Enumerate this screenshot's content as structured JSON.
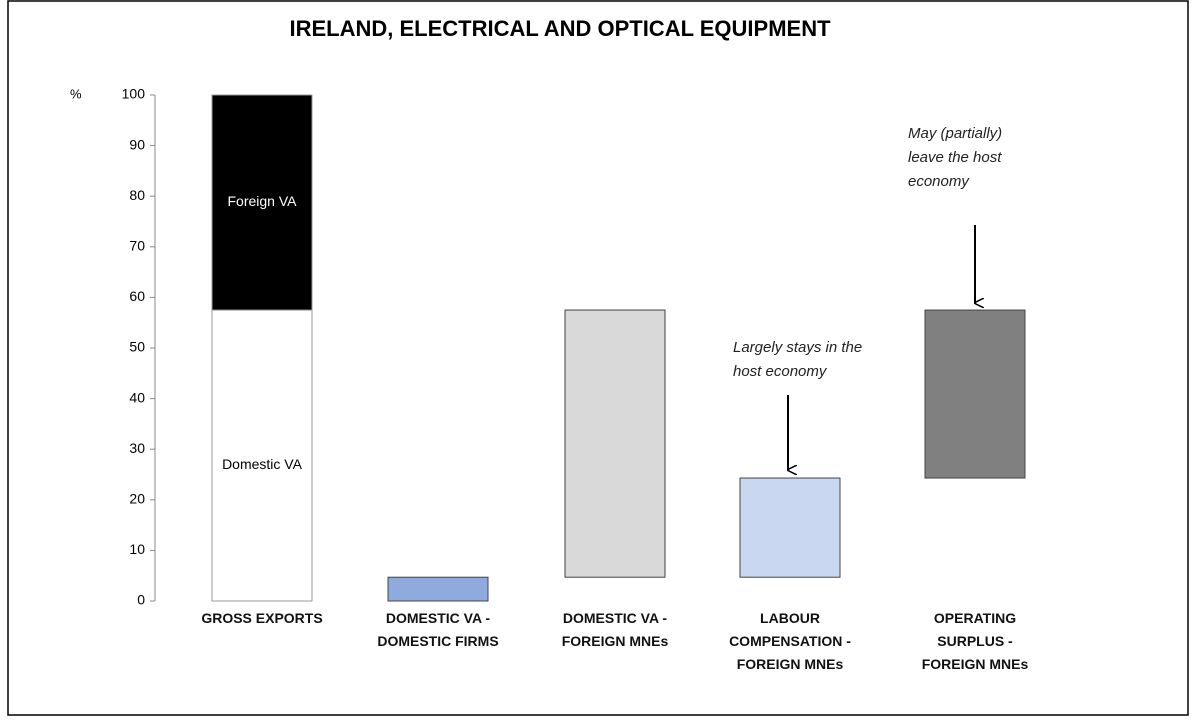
{
  "chart_data": {
    "type": "waterfall",
    "title": "IRELAND, ELECTRICAL AND OPTICAL EQUIPMENT",
    "ylabel": "%",
    "ylim": [
      0,
      100
    ],
    "yticks": [
      0,
      10,
      20,
      30,
      40,
      50,
      60,
      70,
      80,
      90,
      100
    ],
    "bars": [
      {
        "category": "GROSS EXPORTS",
        "segments": [
          {
            "label": "Domestic VA",
            "value": 57.5,
            "color": "#ffffff"
          },
          {
            "label": "Foreign VA",
            "value": 42.5,
            "color": "#000000"
          }
        ]
      },
      {
        "category": "DOMESTIC VA - DOMESTIC FIRMS",
        "value": 4.7,
        "color": "#8faadc"
      },
      {
        "category": "DOMESTIC VA - FOREIGN MNEs",
        "value": 52.8,
        "color": "#d9d9d9"
      },
      {
        "category": "LABOUR COMPENSATION - FOREIGN MNEs",
        "value": 19.6,
        "color": "#c9d8f0"
      },
      {
        "category": "OPERATING SURPLUS - FOREIGN MNEs",
        "value": 33.2,
        "color": "#808080"
      }
    ],
    "annotations": [
      "Largely stays in the host economy",
      "May (partially) leave the host economy"
    ]
  }
}
